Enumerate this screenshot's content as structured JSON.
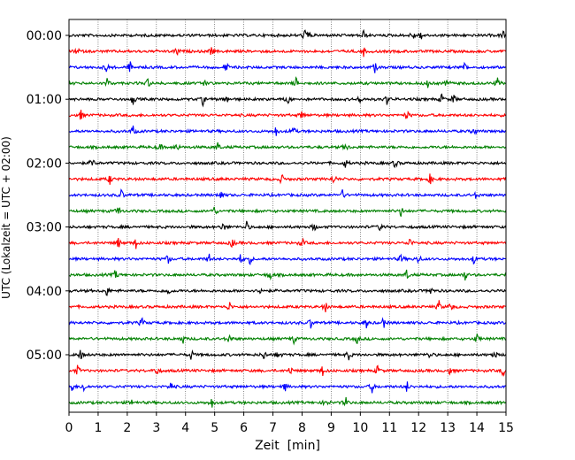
{
  "chart_data": {
    "type": "line",
    "xlabel": "Zeit  [min]",
    "ylabel": "UTC (Lokalzeit = UTC + 02:00)",
    "xlim": [
      0,
      15
    ],
    "x_ticks": [
      "0",
      "1",
      "2",
      "3",
      "4",
      "5",
      "6",
      "7",
      "8",
      "9",
      "10",
      "11",
      "12",
      "13",
      "14",
      "15"
    ],
    "y_tick_labels": [
      "00:00",
      "01:00",
      "02:00",
      "03:00",
      "04:00",
      "05:00"
    ],
    "grid_x": true,
    "trace_colors": [
      "#000000",
      "#ff0000",
      "#0000ff",
      "#008000"
    ],
    "traces": [
      {
        "start": "00:00",
        "spikes": [
          8.1,
          8.2,
          10.1,
          11.8,
          12.1,
          14.9
        ]
      },
      {
        "start": "00:15",
        "spikes": [
          0.3,
          3.7,
          4.9,
          10.1
        ]
      },
      {
        "start": "00:30",
        "spikes": [
          1.3,
          2.1,
          5.4,
          10.5,
          13.6
        ]
      },
      {
        "start": "00:45",
        "spikes": [
          1.3,
          2.7,
          4.7,
          7.8,
          12.3,
          13.0,
          14.7
        ]
      },
      {
        "start": "01:00",
        "spikes": [
          2.2,
          4.6,
          5.4,
          7.5,
          10.0,
          10.9,
          12.8,
          13.2
        ]
      },
      {
        "start": "01:15",
        "spikes": [
          0.4,
          8.0,
          11.6
        ]
      },
      {
        "start": "01:30",
        "spikes": [
          2.2,
          7.1,
          7.7,
          13.9
        ]
      },
      {
        "start": "01:45",
        "spikes": [
          3.1,
          3.7,
          5.1,
          9.5
        ]
      },
      {
        "start": "02:00",
        "spikes": [
          0.8,
          9.5,
          11.2
        ]
      },
      {
        "start": "02:15",
        "spikes": [
          1.4,
          7.3,
          9.1,
          12.4
        ]
      },
      {
        "start": "02:30",
        "spikes": [
          1.8,
          5.2,
          9.4,
          14.0
        ]
      },
      {
        "start": "02:45",
        "spikes": [
          1.7,
          5.0,
          11.4
        ]
      },
      {
        "start": "03:00",
        "spikes": [
          5.3,
          6.1,
          8.4,
          10.7
        ]
      },
      {
        "start": "03:15",
        "spikes": [
          1.7,
          2.3,
          5.6,
          8.0,
          11.7
        ]
      },
      {
        "start": "03:30",
        "spikes": [
          3.4,
          4.8,
          5.9,
          6.2,
          11.4,
          12.0,
          13.9
        ]
      },
      {
        "start": "03:45",
        "spikes": [
          1.6,
          6.9,
          11.6,
          13.6
        ]
      },
      {
        "start": "04:00",
        "spikes": [
          1.3,
          3.4,
          6.6,
          12.4
        ]
      },
      {
        "start": "04:15",
        "spikes": [
          5.5,
          8.8,
          12.7,
          13.1
        ]
      },
      {
        "start": "04:30",
        "spikes": [
          2.5,
          8.3,
          10.2,
          10.8
        ]
      },
      {
        "start": "04:45",
        "spikes": [
          3.9,
          5.5,
          7.7,
          9.9,
          14.0
        ]
      },
      {
        "start": "05:00",
        "spikes": [
          0.4,
          4.2,
          6.7,
          7.2,
          9.6,
          12.4,
          14.6
        ]
      },
      {
        "start": "05:15",
        "spikes": [
          0.3,
          3.0,
          7.6,
          8.7,
          10.6,
          13.1,
          14.9
        ]
      },
      {
        "start": "05:30",
        "spikes": [
          0.1,
          0.5,
          3.5,
          7.4,
          10.4,
          11.6
        ]
      },
      {
        "start": "05:45",
        "spikes": [
          2.2,
          4.9,
          8.8,
          9.5
        ]
      }
    ]
  }
}
